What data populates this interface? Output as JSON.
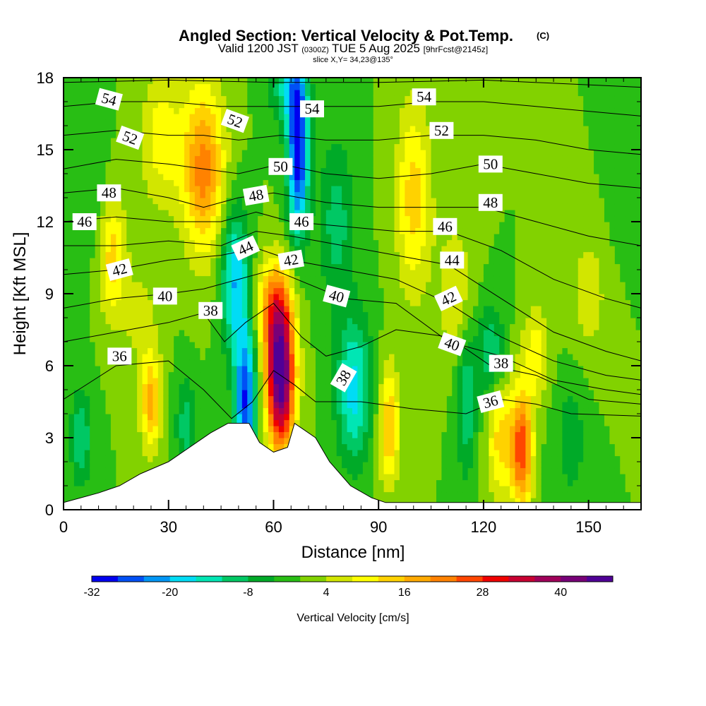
{
  "chart_data": {
    "type": "heatmap",
    "title": "Angled Section: Vertical Velocity & Pot.Temp.",
    "title_units": "(C)",
    "subtitle_valid": "Valid 1200 JST",
    "subtitle_utc": "(0300Z)",
    "subtitle_date": "TUE 5 Aug 2025",
    "subtitle_fcst": "[9hrFcst@2145z]",
    "slice_text": "slice X,Y= 34,23@135°",
    "xlabel": "Distance [nm]",
    "ylabel": "Height [Kft MSL]",
    "xlim": [
      0,
      165
    ],
    "ylim": [
      0,
      18
    ],
    "xticks": [
      "0",
      "30",
      "60",
      "90",
      "120",
      "150"
    ],
    "yticks": [
      "0",
      "3",
      "6",
      "9",
      "12",
      "15",
      "18"
    ],
    "colorbar_label": "Vertical Velocity [cm/s]",
    "colorbar_ticks": [
      "-32",
      "-20",
      "-8",
      "4",
      "16",
      "28",
      "40"
    ],
    "colorbar_range": [
      -32,
      48
    ],
    "colorbar_colors": [
      "#0000f0",
      "#0050f5",
      "#0096f5",
      "#00dcf5",
      "#00e6b4",
      "#00c864",
      "#00aa28",
      "#28be14",
      "#82d200",
      "#d2e600",
      "#ffff00",
      "#ffd200",
      "#ffaa00",
      "#ff8200",
      "#ff4600",
      "#f00000",
      "#c80032",
      "#a0005a",
      "#780078",
      "#500096"
    ],
    "velocity_cells": [
      {
        "x": 40,
        "z": 14.2,
        "sx": 6,
        "sz": 3.5,
        "w": 22
      },
      {
        "x": 28,
        "z": 15.5,
        "sx": 6,
        "sz": 3.0,
        "w": 10
      },
      {
        "x": 14,
        "z": 10.5,
        "sx": 4,
        "sz": 2.5,
        "w": 14
      },
      {
        "x": 22,
        "z": 8.0,
        "sx": 5,
        "sz": 2.0,
        "w": 6
      },
      {
        "x": 25,
        "z": 4.5,
        "sx": 3,
        "sz": 2.0,
        "w": 18
      },
      {
        "x": 62,
        "z": 5.5,
        "sx": 4,
        "sz": 3.0,
        "w": 48
      },
      {
        "x": 60,
        "z": 8.5,
        "sx": 5,
        "sz": 2.0,
        "w": 18
      },
      {
        "x": 52,
        "z": 4.5,
        "sx": 3,
        "sz": 3.0,
        "w": -28
      },
      {
        "x": 49,
        "z": 9.5,
        "sx": 4,
        "sz": 3.0,
        "w": -20
      },
      {
        "x": 67,
        "z": 15.0,
        "sx": 3,
        "sz": 3.5,
        "w": -32
      },
      {
        "x": 64,
        "z": 17.5,
        "sx": 5,
        "sz": 1.5,
        "w": -12
      },
      {
        "x": 83,
        "z": 5.0,
        "sx": 5,
        "sz": 3.0,
        "w": -18
      },
      {
        "x": 78,
        "z": 12.0,
        "sx": 5,
        "sz": 3.5,
        "w": -10
      },
      {
        "x": 100,
        "z": 13.0,
        "sx": 5,
        "sz": 4.0,
        "w": 14
      },
      {
        "x": 93,
        "z": 3.5,
        "sx": 3,
        "sz": 2.5,
        "w": 16
      },
      {
        "x": 112,
        "z": 9.0,
        "sx": 5,
        "sz": 3.0,
        "w": 8
      },
      {
        "x": 131,
        "z": 2.5,
        "sx": 3,
        "sz": 2.5,
        "w": 26
      },
      {
        "x": 125,
        "z": 3.0,
        "sx": 4,
        "sz": 2.5,
        "w": 14
      },
      {
        "x": 122,
        "z": 6.5,
        "sx": 4,
        "sz": 2.0,
        "w": -12
      },
      {
        "x": 135,
        "z": 6.5,
        "sx": 4,
        "sz": 2.0,
        "w": 10
      },
      {
        "x": 150,
        "z": 9.0,
        "sx": 6,
        "sz": 3.0,
        "w": 6
      },
      {
        "x": 145,
        "z": 3.0,
        "sx": 5,
        "sz": 3.0,
        "w": -6
      },
      {
        "x": 115,
        "z": 4.5,
        "sx": 3,
        "sz": 3.0,
        "w": -12
      },
      {
        "x": 8,
        "z": 14.0,
        "sx": 4,
        "sz": 4.0,
        "w": -4
      },
      {
        "x": 5,
        "z": 3.0,
        "sx": 3,
        "sz": 2.0,
        "w": -12
      },
      {
        "x": 35,
        "z": 3.5,
        "sx": 3,
        "sz": 2.0,
        "w": -10
      },
      {
        "x": 160,
        "z": 14.0,
        "sx": 5,
        "sz": 3.0,
        "w": -4
      }
    ],
    "terrain": [
      {
        "x": 0,
        "h": 0.3
      },
      {
        "x": 10,
        "h": 0.7
      },
      {
        "x": 16,
        "h": 1.0
      },
      {
        "x": 22,
        "h": 1.5
      },
      {
        "x": 30,
        "h": 2.0
      },
      {
        "x": 36,
        "h": 2.6
      },
      {
        "x": 42,
        "h": 3.2
      },
      {
        "x": 47,
        "h": 3.6
      },
      {
        "x": 53,
        "h": 3.6
      },
      {
        "x": 56,
        "h": 2.8
      },
      {
        "x": 60,
        "h": 2.4
      },
      {
        "x": 64,
        "h": 2.6
      },
      {
        "x": 66,
        "h": 3.6
      },
      {
        "x": 72,
        "h": 3.0
      },
      {
        "x": 76,
        "h": 2.0
      },
      {
        "x": 82,
        "h": 1.0
      },
      {
        "x": 88,
        "h": 0.5
      },
      {
        "x": 92,
        "h": 0.3
      },
      {
        "x": 165,
        "h": 0.3
      }
    ],
    "isentropes": [
      {
        "theta": 36,
        "pts": [
          [
            0,
            4.6
          ],
          [
            15,
            6.0
          ],
          [
            30,
            6.2
          ],
          [
            40,
            5.0
          ],
          [
            48,
            3.8
          ],
          [
            54,
            4.5
          ],
          [
            60,
            5.8
          ],
          [
            66,
            5.2
          ],
          [
            72,
            4.5
          ],
          [
            85,
            4.5
          ],
          [
            100,
            4.2
          ],
          [
            115,
            4.0
          ],
          [
            125,
            4.6
          ],
          [
            135,
            4.4
          ],
          [
            145,
            4.0
          ],
          [
            165,
            3.9
          ]
        ]
      },
      {
        "theta": 38,
        "pts": [
          [
            0,
            7.0
          ],
          [
            15,
            7.4
          ],
          [
            30,
            7.8
          ],
          [
            40,
            8.2
          ],
          [
            46,
            7.0
          ],
          [
            52,
            7.8
          ],
          [
            60,
            8.6
          ],
          [
            68,
            7.2
          ],
          [
            75,
            6.4
          ],
          [
            85,
            6.8
          ],
          [
            95,
            7.5
          ],
          [
            110,
            7.2
          ],
          [
            122,
            6.0
          ],
          [
            135,
            5.6
          ],
          [
            150,
            4.6
          ],
          [
            165,
            4.4
          ]
        ]
      },
      {
        "theta": 40,
        "pts": [
          [
            0,
            8.4
          ],
          [
            15,
            8.8
          ],
          [
            30,
            9.0
          ],
          [
            40,
            9.2
          ],
          [
            50,
            9.6
          ],
          [
            60,
            10.0
          ],
          [
            70,
            9.4
          ],
          [
            80,
            8.8
          ],
          [
            95,
            8.6
          ],
          [
            110,
            7.0
          ],
          [
            125,
            6.4
          ],
          [
            140,
            5.4
          ],
          [
            155,
            5.0
          ],
          [
            165,
            4.8
          ]
        ]
      },
      {
        "theta": 42,
        "pts": [
          [
            0,
            9.8
          ],
          [
            15,
            10.0
          ],
          [
            30,
            10.4
          ],
          [
            45,
            10.6
          ],
          [
            55,
            10.9
          ],
          [
            65,
            10.4
          ],
          [
            80,
            10.0
          ],
          [
            95,
            9.6
          ],
          [
            110,
            8.6
          ],
          [
            125,
            7.2
          ],
          [
            140,
            6.2
          ],
          [
            155,
            5.6
          ],
          [
            165,
            5.4
          ]
        ]
      },
      {
        "theta": 44,
        "pts": [
          [
            0,
            11.0
          ],
          [
            15,
            11.0
          ],
          [
            30,
            11.2
          ],
          [
            45,
            11.0
          ],
          [
            55,
            11.6
          ],
          [
            65,
            11.4
          ],
          [
            80,
            11.0
          ],
          [
            95,
            10.6
          ],
          [
            110,
            10.2
          ],
          [
            125,
            8.8
          ],
          [
            140,
            7.4
          ],
          [
            155,
            6.6
          ],
          [
            165,
            6.2
          ]
        ]
      },
      {
        "theta": 46,
        "pts": [
          [
            0,
            12.0
          ],
          [
            15,
            12.2
          ],
          [
            30,
            12.0
          ],
          [
            45,
            12.0
          ],
          [
            55,
            12.4
          ],
          [
            65,
            12.0
          ],
          [
            80,
            11.8
          ],
          [
            95,
            11.6
          ],
          [
            110,
            11.6
          ],
          [
            125,
            10.8
          ],
          [
            140,
            9.6
          ],
          [
            155,
            8.8
          ],
          [
            165,
            8.4
          ]
        ]
      },
      {
        "theta": 48,
        "pts": [
          [
            0,
            13.2
          ],
          [
            15,
            13.4
          ],
          [
            30,
            13.0
          ],
          [
            40,
            12.6
          ],
          [
            50,
            13.0
          ],
          [
            60,
            13.2
          ],
          [
            75,
            12.8
          ],
          [
            90,
            12.6
          ],
          [
            105,
            12.6
          ],
          [
            120,
            12.6
          ],
          [
            135,
            12.0
          ],
          [
            150,
            11.4
          ],
          [
            165,
            11.0
          ]
        ]
      },
      {
        "theta": 50,
        "pts": [
          [
            0,
            14.2
          ],
          [
            15,
            14.6
          ],
          [
            30,
            14.4
          ],
          [
            40,
            14.2
          ],
          [
            50,
            14.0
          ],
          [
            62,
            14.4
          ],
          [
            75,
            14.0
          ],
          [
            90,
            13.8
          ],
          [
            105,
            14.0
          ],
          [
            120,
            14.4
          ],
          [
            135,
            14.0
          ],
          [
            150,
            13.6
          ],
          [
            165,
            13.4
          ]
        ]
      },
      {
        "theta": 52,
        "pts": [
          [
            0,
            15.6
          ],
          [
            15,
            15.8
          ],
          [
            30,
            15.6
          ],
          [
            40,
            15.6
          ],
          [
            50,
            15.4
          ],
          [
            62,
            15.6
          ],
          [
            75,
            15.4
          ],
          [
            90,
            15.4
          ],
          [
            105,
            15.6
          ],
          [
            120,
            15.6
          ],
          [
            135,
            15.4
          ],
          [
            150,
            15.0
          ],
          [
            165,
            14.8
          ]
        ]
      },
      {
        "theta": 54,
        "pts": [
          [
            0,
            16.8
          ],
          [
            15,
            17.0
          ],
          [
            30,
            17.0
          ],
          [
            45,
            16.8
          ],
          [
            60,
            16.8
          ],
          [
            75,
            16.8
          ],
          [
            90,
            16.8
          ],
          [
            105,
            17.0
          ],
          [
            120,
            17.0
          ],
          [
            135,
            16.8
          ],
          [
            150,
            16.6
          ],
          [
            165,
            16.4
          ]
        ]
      },
      {
        "theta": 56,
        "pts": [
          [
            0,
            17.8
          ],
          [
            30,
            17.9
          ],
          [
            60,
            17.8
          ],
          [
            90,
            17.8
          ],
          [
            120,
            17.9
          ],
          [
            165,
            17.6
          ]
        ]
      }
    ],
    "isentrope_labels": [
      {
        "text": "54",
        "x": 13,
        "z": 17.1,
        "rot": 15
      },
      {
        "text": "52",
        "x": 19,
        "z": 15.5,
        "rot": 20
      },
      {
        "text": "48",
        "x": 13,
        "z": 13.2,
        "rot": 0
      },
      {
        "text": "46",
        "x": 6,
        "z": 12.0,
        "rot": 0
      },
      {
        "text": "42",
        "x": 16,
        "z": 10.0,
        "rot": -15
      },
      {
        "text": "40",
        "x": 29,
        "z": 8.9,
        "rot": 0
      },
      {
        "text": "38",
        "x": 42,
        "z": 8.3,
        "rot": 0
      },
      {
        "text": "36",
        "x": 16,
        "z": 6.4,
        "rot": 0
      },
      {
        "text": "52",
        "x": 49,
        "z": 16.2,
        "rot": 20
      },
      {
        "text": "54",
        "x": 71,
        "z": 16.7,
        "rot": 0
      },
      {
        "text": "50",
        "x": 62,
        "z": 14.3,
        "rot": 0
      },
      {
        "text": "48",
        "x": 55,
        "z": 13.1,
        "rot": -10
      },
      {
        "text": "46",
        "x": 68,
        "z": 12.0,
        "rot": 0
      },
      {
        "text": "44",
        "x": 52,
        "z": 10.9,
        "rot": -25
      },
      {
        "text": "42",
        "x": 65,
        "z": 10.4,
        "rot": -10
      },
      {
        "text": "40",
        "x": 78,
        "z": 8.9,
        "rot": 15
      },
      {
        "text": "38",
        "x": 80,
        "z": 5.5,
        "rot": -60
      },
      {
        "text": "54",
        "x": 103,
        "z": 17.2,
        "rot": 0
      },
      {
        "text": "52",
        "x": 108,
        "z": 15.8,
        "rot": 0
      },
      {
        "text": "50",
        "x": 122,
        "z": 14.4,
        "rot": 0
      },
      {
        "text": "48",
        "x": 122,
        "z": 12.8,
        "rot": 0
      },
      {
        "text": "46",
        "x": 109,
        "z": 11.8,
        "rot": 0
      },
      {
        "text": "44",
        "x": 111,
        "z": 10.4,
        "rot": 0
      },
      {
        "text": "42",
        "x": 110,
        "z": 8.8,
        "rot": -25
      },
      {
        "text": "40",
        "x": 111,
        "z": 6.9,
        "rot": 20
      },
      {
        "text": "38",
        "x": 125,
        "z": 6.1,
        "rot": 0
      },
      {
        "text": "36",
        "x": 122,
        "z": 4.5,
        "rot": -15
      }
    ]
  }
}
